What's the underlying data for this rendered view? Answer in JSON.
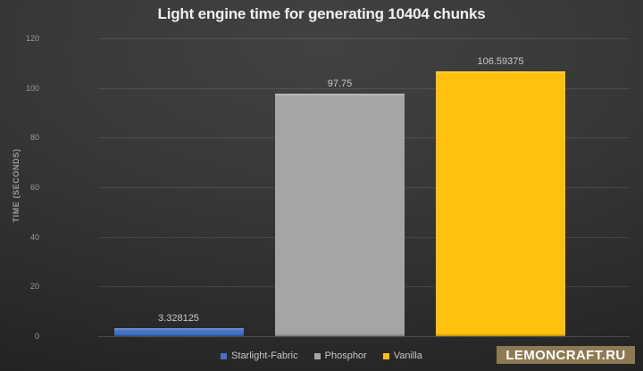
{
  "chart_data": {
    "type": "bar",
    "title": "Light engine time for generating 10404 chunks",
    "xlabel": "",
    "ylabel": "TIME (SECONDS)",
    "ylim": [
      0,
      120
    ],
    "yticks": [
      0,
      20,
      40,
      60,
      80,
      100,
      120
    ],
    "grid": true,
    "legend_position": "bottom",
    "categories": [
      "Starlight-Fabric",
      "Phosphor",
      "Vanilla"
    ],
    "values": [
      3.328125,
      97.75,
      106.59375
    ],
    "value_labels": [
      "3.328125",
      "97.75",
      "106.59375"
    ],
    "bar_colors": [
      "#4472C4",
      "#A5A5A5",
      "#FEC10D"
    ]
  },
  "legend": {
    "items": [
      {
        "label": "Starlight-Fabric",
        "color": "#4472C4"
      },
      {
        "label": "Phosphor",
        "color": "#A5A5A5"
      },
      {
        "label": "Vanilla",
        "color": "#FEC10D"
      }
    ]
  },
  "watermark": {
    "label": "LEMONCRAFT.RU",
    "background": "#8D7A52"
  }
}
